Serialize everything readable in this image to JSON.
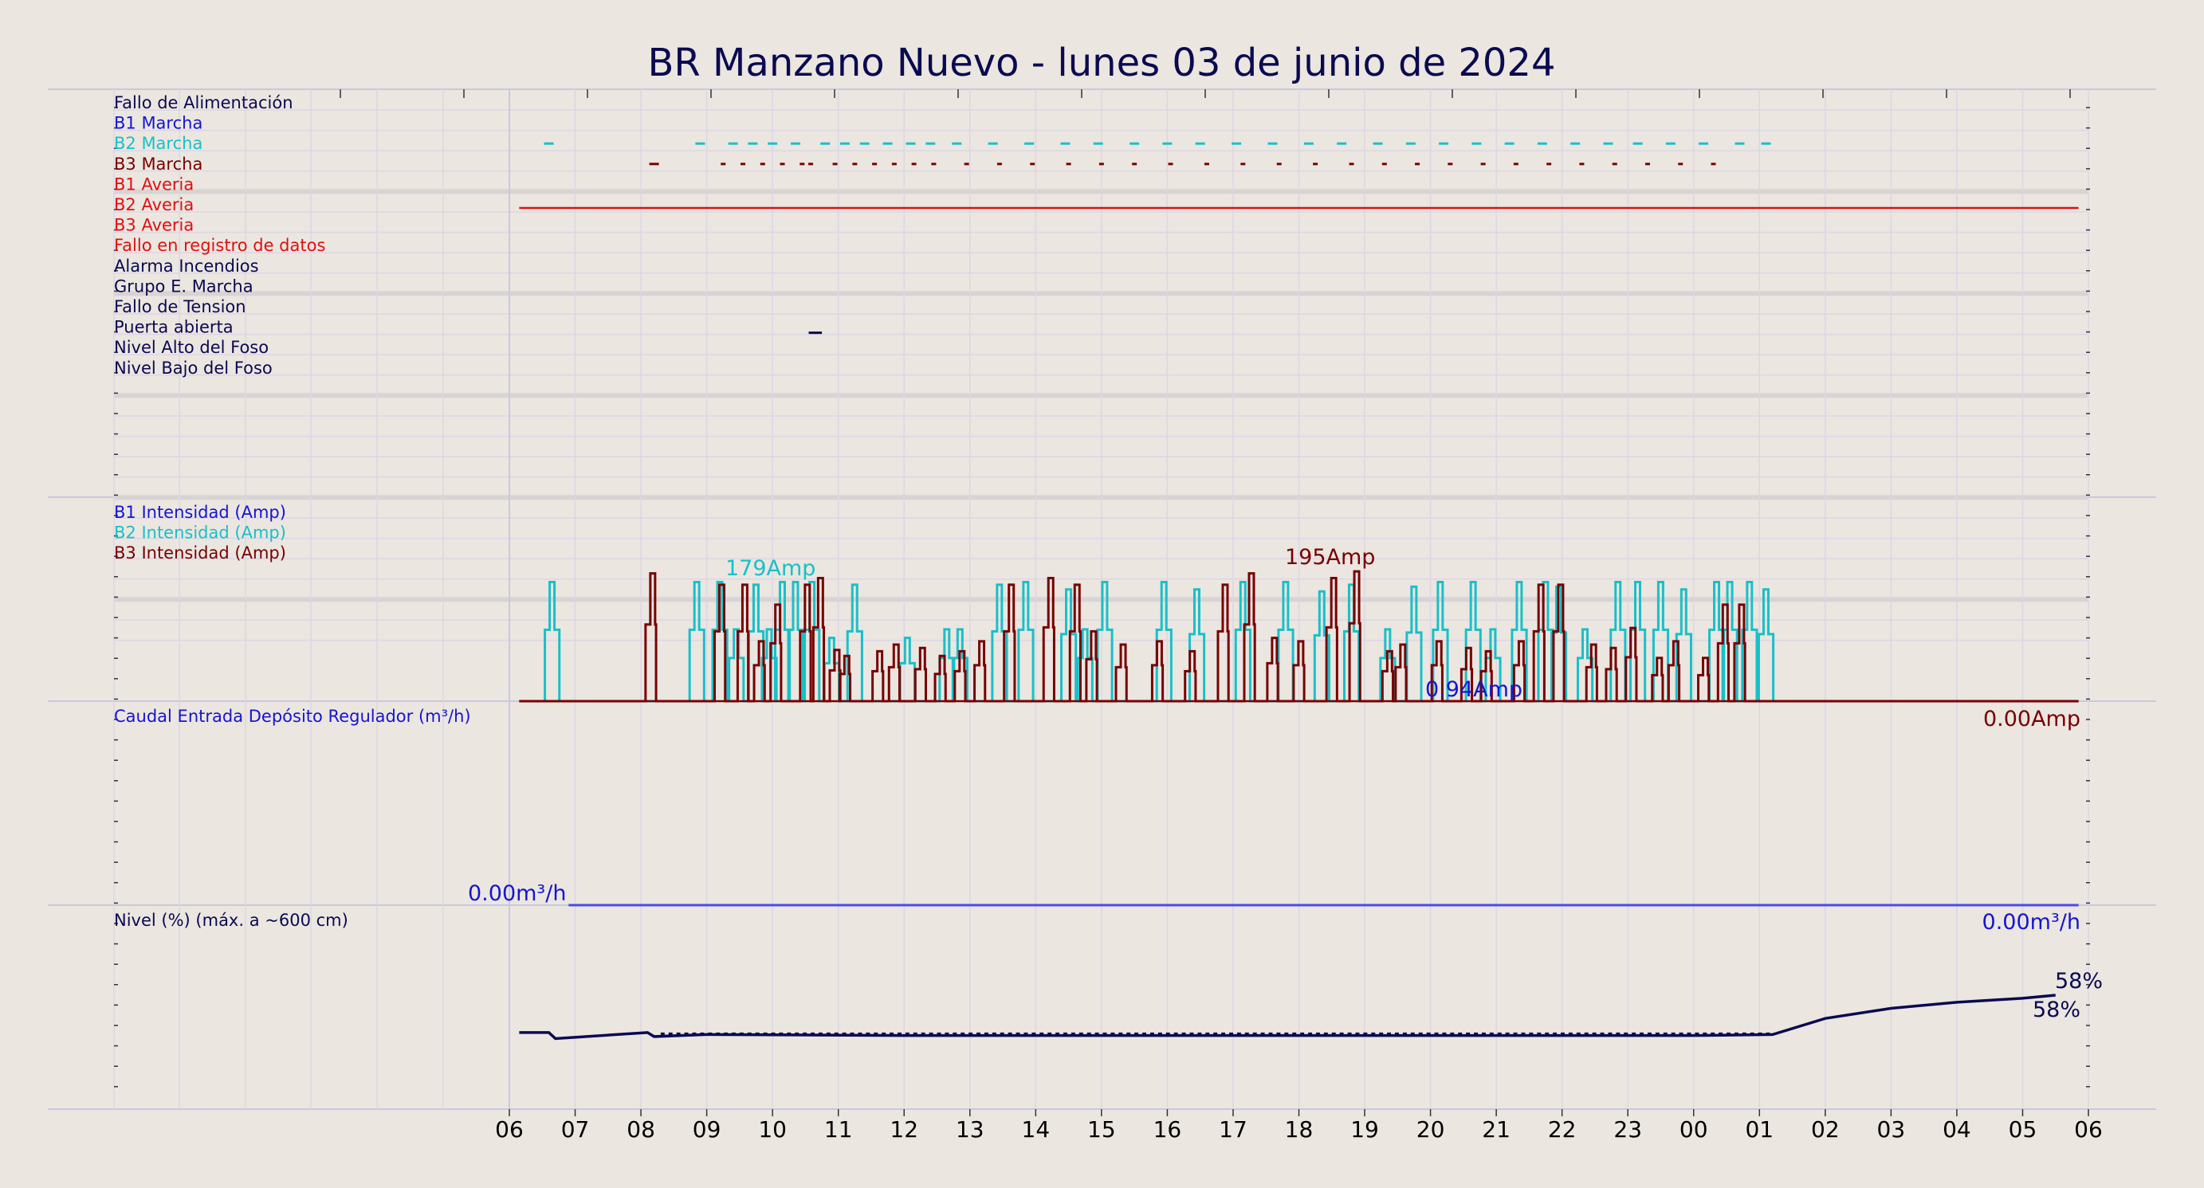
{
  "title": "BR Manzano Nuevo   -   lunes 03 de junio de 2024",
  "x_ticks": [
    "06",
    "07",
    "08",
    "09",
    "10",
    "11",
    "12",
    "13",
    "14",
    "15",
    "16",
    "17",
    "18",
    "19",
    "20",
    "21",
    "22",
    "23",
    "00",
    "01",
    "02",
    "03",
    "04",
    "05",
    "06"
  ],
  "colors": {
    "navy": "#0a0a50",
    "blue": "#1515d0",
    "cyan": "#18c0c8",
    "maroon": "#780000",
    "red": "#e01010",
    "grid": "#dcd6e6",
    "band": "#d8d4d4",
    "separator": "#c8c8e4",
    "level": "#0a0a50",
    "flow": "#4a4aee"
  },
  "panels": {
    "status": {
      "labels": [
        {
          "text": "Fallo de Alimentación",
          "color": "#0a0a50"
        },
        {
          "text": "B1 Marcha",
          "color": "#1515d0"
        },
        {
          "text": "B2 Marcha",
          "color": "#18c0c8"
        },
        {
          "text": "B3 Marcha",
          "color": "#780000"
        },
        {
          "text": "B1 Averia",
          "color": "#e01010"
        },
        {
          "text": "B2 Averia",
          "color": "#e01010"
        },
        {
          "text": "B3 Averia",
          "color": "#e01010"
        },
        {
          "text": "Fallo en registro de datos",
          "color": "#e01010"
        },
        {
          "text": "Alarma Incendios",
          "color": "#0a0a50"
        },
        {
          "text": "Grupo E. Marcha",
          "color": "#0a0a50"
        },
        {
          "text": "Fallo de Tension",
          "color": "#0a0a50"
        },
        {
          "text": "Puerta abierta",
          "color": "#0a0a50"
        },
        {
          "text": "Nivel Alto del Foso",
          "color": "#0a0a50"
        },
        {
          "text": "Nivel Bajo del Foso",
          "color": "#0a0a50"
        }
      ],
      "b2_marcha_hours": [
        6.6,
        8.9,
        9.4,
        9.7,
        10.0,
        10.35,
        10.8,
        11.1,
        11.4,
        11.75,
        12.1,
        12.4,
        12.8,
        13.35,
        13.9,
        14.45,
        14.95,
        15.5,
        16.0,
        16.5,
        17.05,
        17.6,
        18.15,
        18.65,
        19.2,
        19.7,
        20.2,
        20.7,
        21.2,
        21.7,
        22.2,
        22.7,
        23.15,
        23.65,
        24.15,
        24.7,
        25.1
      ],
      "b3_marcha_hours": [
        8.2,
        9.25,
        9.55,
        9.85,
        10.15,
        10.45,
        10.58,
        10.95,
        11.25,
        11.55,
        11.85,
        12.15,
        12.45,
        12.95,
        13.45,
        13.95,
        14.5,
        15.0,
        15.5,
        16.05,
        16.6,
        17.15,
        17.7,
        18.25,
        18.8,
        19.3,
        19.8,
        20.3,
        20.8,
        21.3,
        21.8,
        22.3,
        22.8,
        23.3,
        23.8,
        24.3
      ],
      "b2_averia_range": [
        6.15,
        29.85
      ],
      "puerta_abierta_range": [
        10.55,
        10.75
      ]
    },
    "intensity": {
      "labels": [
        {
          "text": "B1 Intensidad (Amp)",
          "color": "#1515d0"
        },
        {
          "text": "B2 Intensidad (Amp)",
          "color": "#18c0c8"
        },
        {
          "text": "B3 Intensidad (Amp)",
          "color": "#780000"
        }
      ],
      "ann_b2_max": "179Amp",
      "ann_b3_max": "195Amp",
      "ann_b1_last": "0.94Amp",
      "ann_b3_last": "0.00Amp"
    },
    "flow": {
      "label": "Caudal Entrada Depósito Regulador (m³/h)",
      "ann_start": "0.00m³/h",
      "ann_end": "0.00m³/h"
    },
    "level": {
      "label": "Nivel (%) (máx. a ~600 cm)",
      "ann_max": "58%",
      "ann_last": "58%"
    }
  },
  "chart_data": {
    "type": "line",
    "title": "BR Manzano Nuevo   -   lunes 03 de junio de 2024",
    "x_unit": "hour of day (continues past midnight: 24=00h, 29=05h)",
    "xlim": [
      6,
      30
    ],
    "series": [
      {
        "name": "B2 Intensidad (Amp)",
        "peaks_hours": [
          6.65,
          8.85,
          9.2,
          9.45,
          9.75,
          9.95,
          10.15,
          10.35,
          10.6,
          10.9,
          11.25,
          12.05,
          12.65,
          12.85,
          13.45,
          13.85,
          14.5,
          14.75,
          15.05,
          15.95,
          16.45,
          17.15,
          17.8,
          18.35,
          18.8,
          19.35,
          19.75,
          20.15,
          20.65,
          20.95,
          21.35,
          21.75,
          21.95,
          22.35,
          22.85,
          23.15,
          23.5,
          23.85,
          24.35,
          24.55,
          24.85,
          25.1
        ],
        "peak_values_amp": [
          179,
          179,
          179,
          108,
          175,
          108,
          179,
          179,
          179,
          95,
          175,
          95,
          108,
          108,
          175,
          179,
          168,
          108,
          179,
          179,
          168,
          179,
          179,
          165,
          175,
          108,
          172,
          179,
          179,
          108,
          179,
          179,
          172,
          108,
          179,
          179,
          179,
          168,
          179,
          179,
          179,
          168
        ]
      },
      {
        "name": "B3 Intensidad (Amp)",
        "peaks_hours": [
          8.15,
          9.2,
          9.55,
          9.8,
          10.05,
          10.5,
          10.7,
          10.95,
          11.1,
          11.6,
          11.85,
          12.25,
          12.55,
          12.85,
          13.15,
          13.6,
          14.2,
          14.6,
          14.85,
          15.3,
          15.85,
          16.35,
          16.85,
          17.25,
          17.6,
          18.0,
          18.5,
          18.85,
          19.35,
          19.55,
          20.1,
          20.55,
          20.85,
          21.35,
          21.65,
          21.95,
          22.45,
          22.75,
          23.05,
          23.45,
          23.7,
          24.15,
          24.45,
          24.7
        ],
        "peak_values_amp": [
          192,
          175,
          175,
          90,
          145,
          175,
          185,
          77,
          68,
          75,
          85,
          80,
          68,
          75,
          90,
          175,
          185,
          175,
          105,
          85,
          90,
          75,
          175,
          192,
          95,
          90,
          185,
          195,
          75,
          85,
          90,
          80,
          75,
          90,
          175,
          175,
          85,
          80,
          110,
          65,
          90,
          65,
          145,
          145
        ]
      },
      {
        "name": "Caudal Entrada Depósito Regulador (m³/h)",
        "x": [
          6.15,
          6.9,
          29.85
        ],
        "y": [
          0,
          0,
          0
        ]
      },
      {
        "name": "Nivel (%) (máx. a ~600 cm)",
        "x": [
          6.15,
          6.6,
          6.7,
          8.1,
          8.2,
          9.0,
          12.0,
          18.0,
          24.0,
          25.2,
          26.0,
          27.0,
          28.0,
          29.0,
          29.5
        ],
        "y": [
          38,
          38,
          35,
          38,
          36,
          37,
          36.5,
          36.5,
          36.5,
          37,
          45,
          50,
          53,
          55,
          56.5
        ]
      }
    ],
    "ann": {
      "b2_max_amp": 179,
      "b3_max_amp": 195,
      "b1_last_amp": 0.94,
      "b3_last_amp": 0.0,
      "level_max_pct": 58,
      "level_last_pct": 58
    }
  }
}
